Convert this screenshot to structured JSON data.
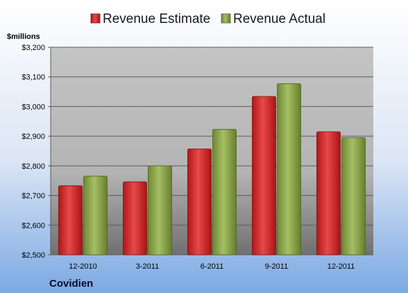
{
  "chart_data": {
    "type": "bar",
    "title": "",
    "ylabel": "$millions",
    "xlabel": "",
    "company": "Covidien",
    "categories": [
      "12-2010",
      "3-2011",
      "6-2011",
      "9-2011",
      "12-2011"
    ],
    "series": [
      {
        "name": "Revenue Estimate",
        "values": [
          2733,
          2746,
          2857,
          3034,
          2915
        ],
        "color": "#d42626"
      },
      {
        "name": "Revenue Actual",
        "values": [
          2765,
          2800,
          2923,
          3077,
          2895
        ],
        "color": "#8aa346"
      }
    ],
    "ylim": [
      2500,
      3200
    ],
    "yticks": [
      2500,
      2600,
      2700,
      2800,
      2900,
      3000,
      3100,
      3200
    ],
    "ytick_labels": [
      "$2,500",
      "$2,600",
      "$2,700",
      "$2,800",
      "$2,900",
      "$3,000",
      "$3,100",
      "$3,200"
    ],
    "grid": true,
    "legend_position": "top"
  }
}
